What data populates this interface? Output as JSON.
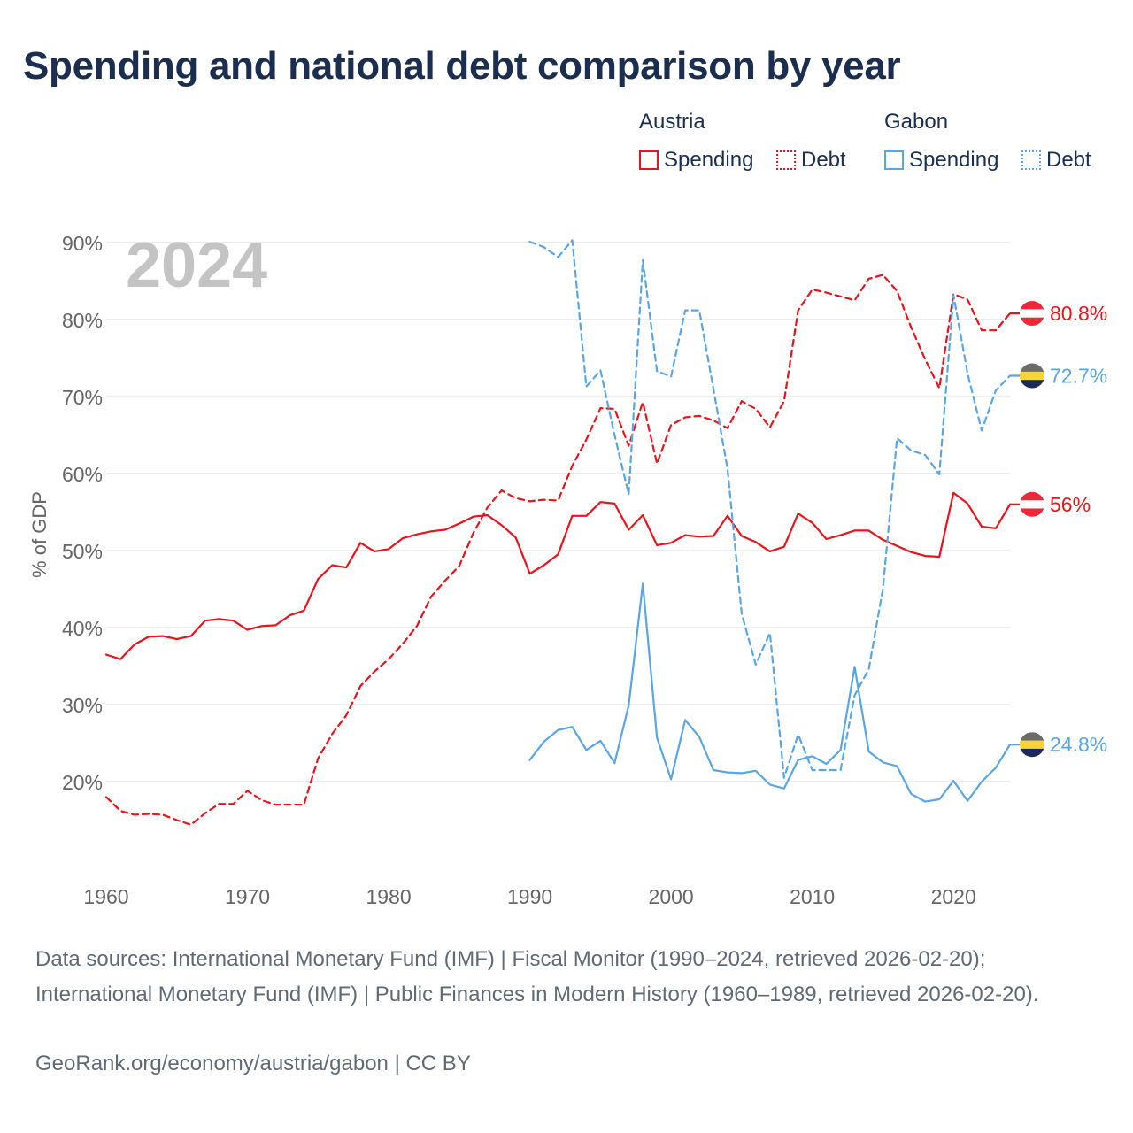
{
  "title": "Spending and national debt comparison by year",
  "legend": {
    "groups": [
      {
        "country": "Austria",
        "color": "#e8141c",
        "items": [
          {
            "label": "Spending",
            "style": "solid"
          },
          {
            "label": "Debt",
            "style": "dotted"
          }
        ]
      },
      {
        "country": "Gabon",
        "color": "#5aa5e4",
        "items": [
          {
            "label": "Spending",
            "style": "solid"
          },
          {
            "label": "Debt",
            "style": "dotted"
          }
        ]
      }
    ]
  },
  "footer": {
    "sources": "Data sources: International Monetary Fund (IMF) | Fiscal Monitor (1990–2024, retrieved 2026-02-20); International Monetary Fund (IMF) | Public Finances in Modern History (1960–1989, retrieved 2026-02-20).",
    "credit": "GeoRank.org/economy/austria/gabon | CC BY"
  },
  "chart_data": {
    "type": "line",
    "year_label": "2024",
    "ylabel": "% of GDP",
    "xlabel": "",
    "xlim": [
      1960,
      2024
    ],
    "ylim": [
      10,
      90
    ],
    "x_ticks": [
      1960,
      1970,
      1980,
      1990,
      2000,
      2010,
      2020
    ],
    "y_ticks": [
      20,
      30,
      40,
      50,
      60,
      70,
      80,
      90
    ],
    "y_tick_labels": [
      "20%",
      "30%",
      "40%",
      "50%",
      "60%",
      "70%",
      "80%",
      "90%"
    ],
    "grid": true,
    "series": [
      {
        "name": "Austria Spending",
        "country": "Austria",
        "metric": "Spending",
        "color": "#e8141c",
        "dash": "solid",
        "flag": "austria",
        "end_label": "56%",
        "start_year": 1960,
        "values": [
          36.5,
          35.9,
          37.8,
          38.8,
          38.9,
          38.5,
          38.9,
          40.9,
          41.1,
          40.9,
          39.7,
          40.2,
          40.3,
          41.6,
          42.2,
          46.3,
          48.1,
          47.8,
          51.0,
          49.9,
          50.2,
          51.6,
          52.1,
          52.5,
          52.7,
          53.5,
          54.4,
          54.6,
          53.3,
          51.7,
          47.0,
          48.1,
          49.5,
          54.5,
          54.5,
          56.3,
          56.1,
          52.7,
          54.6,
          50.7,
          51.0,
          52.0,
          51.8,
          51.9,
          54.5,
          51.9,
          51.1,
          49.9,
          50.5,
          54.8,
          53.6,
          51.5,
          52.0,
          52.6,
          52.6,
          51.4,
          50.6,
          49.8,
          49.3,
          49.2,
          57.5,
          56.1,
          53.1,
          52.9,
          56.0
        ]
      },
      {
        "name": "Austria Debt",
        "country": "Austria",
        "metric": "Debt",
        "color": "#e8141c",
        "dash": "dashed",
        "flag": "austria",
        "end_label": "80.8%",
        "start_year": 1960,
        "values": [
          18.0,
          16.2,
          15.7,
          15.8,
          15.7,
          15.0,
          14.4,
          15.9,
          17.1,
          17.1,
          18.8,
          17.6,
          17.0,
          17.0,
          17.0,
          23.0,
          26.2,
          28.6,
          32.4,
          34.3,
          35.9,
          37.9,
          40.2,
          44.0,
          46.1,
          48.0,
          52.3,
          55.6,
          57.8,
          56.8,
          56.4,
          56.6,
          56.5,
          61.0,
          64.4,
          68.5,
          68.4,
          63.6,
          69.3,
          61.3,
          66.3,
          67.3,
          67.5,
          66.9,
          65.9,
          69.4,
          68.4,
          66.0,
          69.4,
          81.2,
          83.9,
          83.5,
          83.0,
          82.5,
          85.3,
          85.8,
          83.7,
          79.0,
          74.8,
          71.1,
          83.3,
          82.6,
          78.6,
          78.6,
          80.8
        ]
      },
      {
        "name": "Gabon Spending",
        "country": "Gabon",
        "metric": "Spending",
        "color": "#5aa5e4",
        "dash": "solid",
        "flag": "gabon",
        "end_label": "24.8%",
        "start_year": 1990,
        "values": [
          22.8,
          25.2,
          26.7,
          27.1,
          24.1,
          25.3,
          22.4,
          29.9,
          45.7,
          25.7,
          20.3,
          28.0,
          25.8,
          21.5,
          21.2,
          21.1,
          21.4,
          19.6,
          19.1,
          22.8,
          23.3,
          22.3,
          24.1,
          34.9,
          23.9,
          22.5,
          22.0,
          18.4,
          17.4,
          17.7,
          20.1,
          17.5,
          20.0,
          21.8,
          24.8
        ]
      },
      {
        "name": "Gabon Debt",
        "country": "Gabon",
        "metric": "Debt",
        "color": "#5aa5e4",
        "dash": "dashed",
        "flag": "gabon",
        "end_label": "72.7%",
        "start_year": 1990,
        "values": [
          90.1,
          89.4,
          88.1,
          90.3,
          71.3,
          73.4,
          65.0,
          57.3,
          87.7,
          73.3,
          72.6,
          81.2,
          81.2,
          71.0,
          60.6,
          41.8,
          35.2,
          39.3,
          20.5,
          26.1,
          21.5,
          21.5,
          21.5,
          31.2,
          34.6,
          45.0,
          64.6,
          63.0,
          62.4,
          59.9,
          83.2,
          73.0,
          65.6,
          70.8,
          72.7
        ]
      }
    ]
  }
}
